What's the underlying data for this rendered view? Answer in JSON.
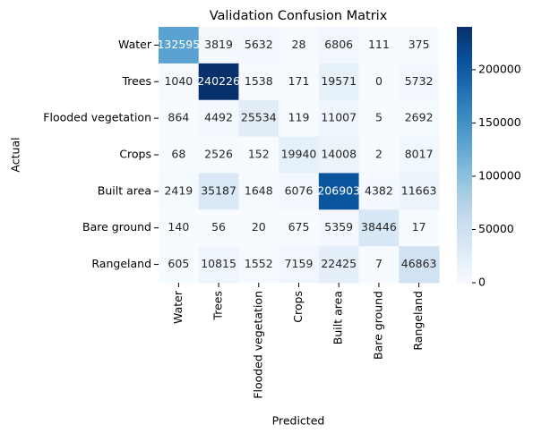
{
  "chart_data": {
    "type": "heatmap",
    "title": "Validation Confusion Matrix",
    "x_label": "Predicted",
    "y_label": "Actual",
    "x_categories": [
      "Water",
      "Trees",
      "Flooded vegetation",
      "Crops",
      "Built area",
      "Bare ground",
      "Rangeland"
    ],
    "y_categories": [
      "Water",
      "Trees",
      "Flooded vegetation",
      "Crops",
      "Built area",
      "Bare ground",
      "Rangeland"
    ],
    "values": [
      [
        132595,
        3819,
        5632,
        28,
        6806,
        111,
        375
      ],
      [
        1040,
        240226,
        1538,
        171,
        19571,
        0,
        5732
      ],
      [
        864,
        4492,
        25534,
        119,
        11007,
        5,
        2692
      ],
      [
        68,
        2526,
        152,
        19940,
        14008,
        2,
        8017
      ],
      [
        2419,
        35187,
        1648,
        6076,
        206903,
        4382,
        11663
      ],
      [
        140,
        56,
        20,
        675,
        5359,
        38446,
        17
      ],
      [
        605,
        10815,
        1552,
        7159,
        22425,
        7,
        46863
      ]
    ],
    "colormap": "Blues",
    "clim": [
      0,
      240226
    ],
    "cticks": [
      0,
      50000,
      100000,
      150000,
      200000
    ]
  }
}
